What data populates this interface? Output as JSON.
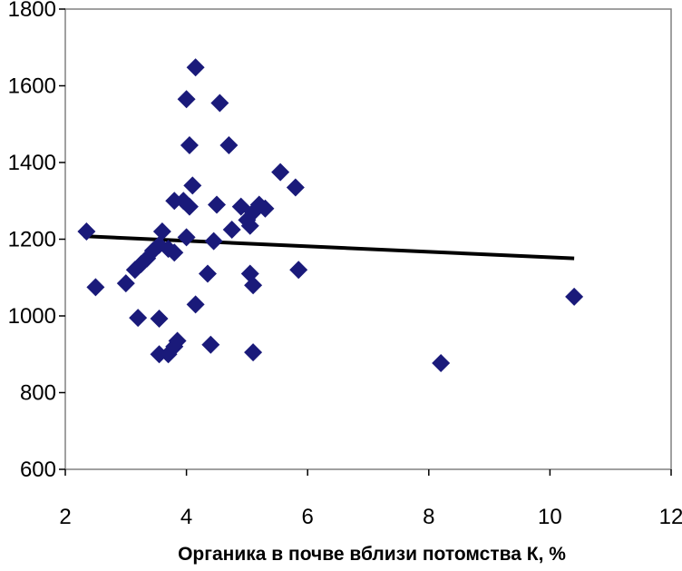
{
  "chart_data": {
    "type": "scatter",
    "title": "",
    "xlabel": "Органика в почве вблизи потомства К, %",
    "ylabel": "",
    "xlim": [
      2,
      12
    ],
    "ylim": [
      600,
      1800
    ],
    "x_ticks": [
      "2",
      "4",
      "6",
      "8",
      "10",
      "12"
    ],
    "y_ticks": [
      "600",
      "800",
      "1000",
      "1200",
      "1400",
      "1600",
      "1800"
    ],
    "grid": false,
    "legend": "none",
    "marker": "diamond",
    "marker_color": "#1a1a7a",
    "trendline": {
      "x": [
        2.3,
        10.4
      ],
      "y": [
        1208,
        1150
      ],
      "color": "#000000"
    },
    "points": [
      {
        "x": 2.35,
        "y": 1220
      },
      {
        "x": 2.5,
        "y": 1075
      },
      {
        "x": 3.0,
        "y": 1085
      },
      {
        "x": 3.15,
        "y": 1120
      },
      {
        "x": 3.25,
        "y": 1135
      },
      {
        "x": 3.35,
        "y": 1150
      },
      {
        "x": 3.45,
        "y": 1170
      },
      {
        "x": 3.55,
        "y": 1185
      },
      {
        "x": 3.6,
        "y": 1220
      },
      {
        "x": 3.7,
        "y": 1175
      },
      {
        "x": 3.8,
        "y": 1165
      },
      {
        "x": 3.2,
        "y": 995
      },
      {
        "x": 3.55,
        "y": 993
      },
      {
        "x": 3.55,
        "y": 900
      },
      {
        "x": 3.7,
        "y": 900
      },
      {
        "x": 3.8,
        "y": 920
      },
      {
        "x": 3.85,
        "y": 935
      },
      {
        "x": 3.8,
        "y": 1300
      },
      {
        "x": 3.95,
        "y": 1300
      },
      {
        "x": 4.05,
        "y": 1285
      },
      {
        "x": 4.0,
        "y": 1205
      },
      {
        "x": 4.1,
        "y": 1340
      },
      {
        "x": 4.05,
        "y": 1445
      },
      {
        "x": 4.0,
        "y": 1565
      },
      {
        "x": 4.15,
        "y": 1648
      },
      {
        "x": 4.15,
        "y": 1030
      },
      {
        "x": 4.35,
        "y": 1110
      },
      {
        "x": 4.4,
        "y": 925
      },
      {
        "x": 4.45,
        "y": 1195
      },
      {
        "x": 4.5,
        "y": 1290
      },
      {
        "x": 4.55,
        "y": 1555
      },
      {
        "x": 4.7,
        "y": 1445
      },
      {
        "x": 4.75,
        "y": 1225
      },
      {
        "x": 4.9,
        "y": 1285
      },
      {
        "x": 5.0,
        "y": 1250
      },
      {
        "x": 5.05,
        "y": 1235
      },
      {
        "x": 5.1,
        "y": 1270
      },
      {
        "x": 5.2,
        "y": 1290
      },
      {
        "x": 5.3,
        "y": 1280
      },
      {
        "x": 5.05,
        "y": 1110
      },
      {
        "x": 5.1,
        "y": 1080
      },
      {
        "x": 5.1,
        "y": 905
      },
      {
        "x": 5.55,
        "y": 1375
      },
      {
        "x": 5.8,
        "y": 1335
      },
      {
        "x": 5.85,
        "y": 1120
      },
      {
        "x": 8.2,
        "y": 877
      },
      {
        "x": 10.4,
        "y": 1050
      }
    ]
  }
}
